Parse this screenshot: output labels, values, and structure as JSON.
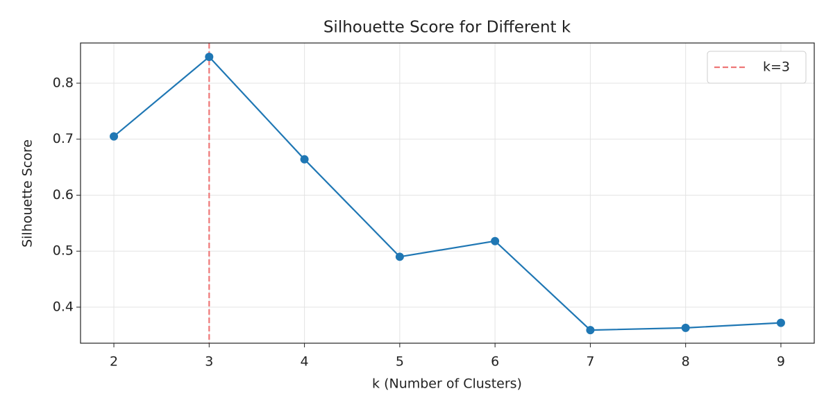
{
  "chart_data": {
    "type": "line",
    "title": "Silhouette Score for Different k",
    "x_label": "k (Number of Clusters)",
    "y_label": "Silhouette Score",
    "x": [
      2,
      3,
      4,
      5,
      6,
      7,
      8,
      9
    ],
    "series": [
      {
        "color": "#1f77b4",
        "values": [
          0.705,
          0.847,
          0.664,
          0.49,
          0.518,
          0.359,
          0.363,
          0.372
        ]
      }
    ],
    "xlim": [
      1.65,
      9.35
    ],
    "xticks": [
      2,
      3,
      4,
      5,
      6,
      7,
      8,
      9
    ],
    "ylim": [
      0.3356,
      0.8718
    ],
    "yticks": [
      0.4,
      0.5,
      0.6,
      0.7,
      0.8
    ],
    "vlines": [
      {
        "x": 3,
        "label": "k=3",
        "color": "#ee7777",
        "style": "dashed"
      }
    ],
    "grid": true,
    "legend": "upper right"
  }
}
